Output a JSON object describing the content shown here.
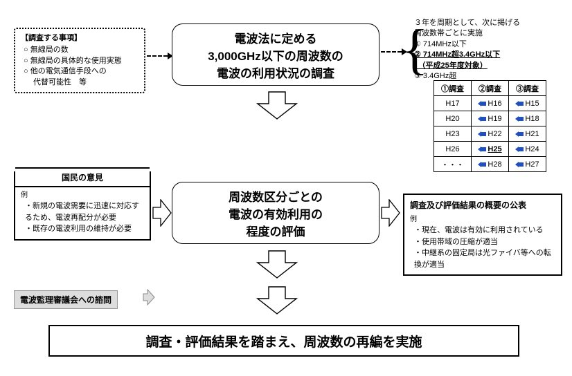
{
  "investigation_box": {
    "title": "【調査する事項】",
    "items": [
      "○ 無線局の数",
      "○ 無線局の具体的な使用実態",
      "○ 他の電気通信手段への\n　 代替可能性　等"
    ]
  },
  "main1": {
    "l1": "電波法に定める",
    "l2": "3,000GHz以下の周波数の",
    "l3": "電波の利用状況の調査"
  },
  "main2": {
    "l1": "周波数区分ごとの",
    "l2": "電波の有効利用の",
    "l3": "程度の評価"
  },
  "cycle": {
    "header": "３年を周期として、次に掲げる\n周波数帯ごとに実施",
    "items": [
      "① 714MHz以下",
      "② 714MHz超3.4GHz以下\n　（平成25年度対象）",
      "③ 3.4GHz超"
    ]
  },
  "table": {
    "headers": [
      "①調査",
      "②調査",
      "③調査"
    ],
    "rows": [
      [
        "H17",
        "H16",
        "H15"
      ],
      [
        "H20",
        "H19",
        "H18"
      ],
      [
        "H23",
        "H22",
        "H21"
      ],
      [
        "H26",
        "H25",
        "H24"
      ],
      [
        "・・・",
        "H28",
        "H27"
      ]
    ],
    "highlight_row": 3,
    "highlight_col": 1
  },
  "opinion_box": {
    "title": "国民の意見",
    "example_label": "例",
    "items": [
      "新規の電波需要に迅速に対応するため、電波再配分が必要",
      "既存の電波利用の維持が必要"
    ]
  },
  "result_box": {
    "title": "調査及び評価結果の概要の公表",
    "example_label": "例",
    "items": [
      "現在、電波は有効に利用されている",
      "使用帯域の圧縮が適当",
      "中継系の固定局は光ファイバ等への転換が適当"
    ]
  },
  "advisory_label": "電波監理審議会への諮問",
  "final": "調査・評価結果を踏まえ、周波数の再編を実施",
  "colors": {
    "blue": "#2050c0",
    "grey": "#dddddd"
  }
}
